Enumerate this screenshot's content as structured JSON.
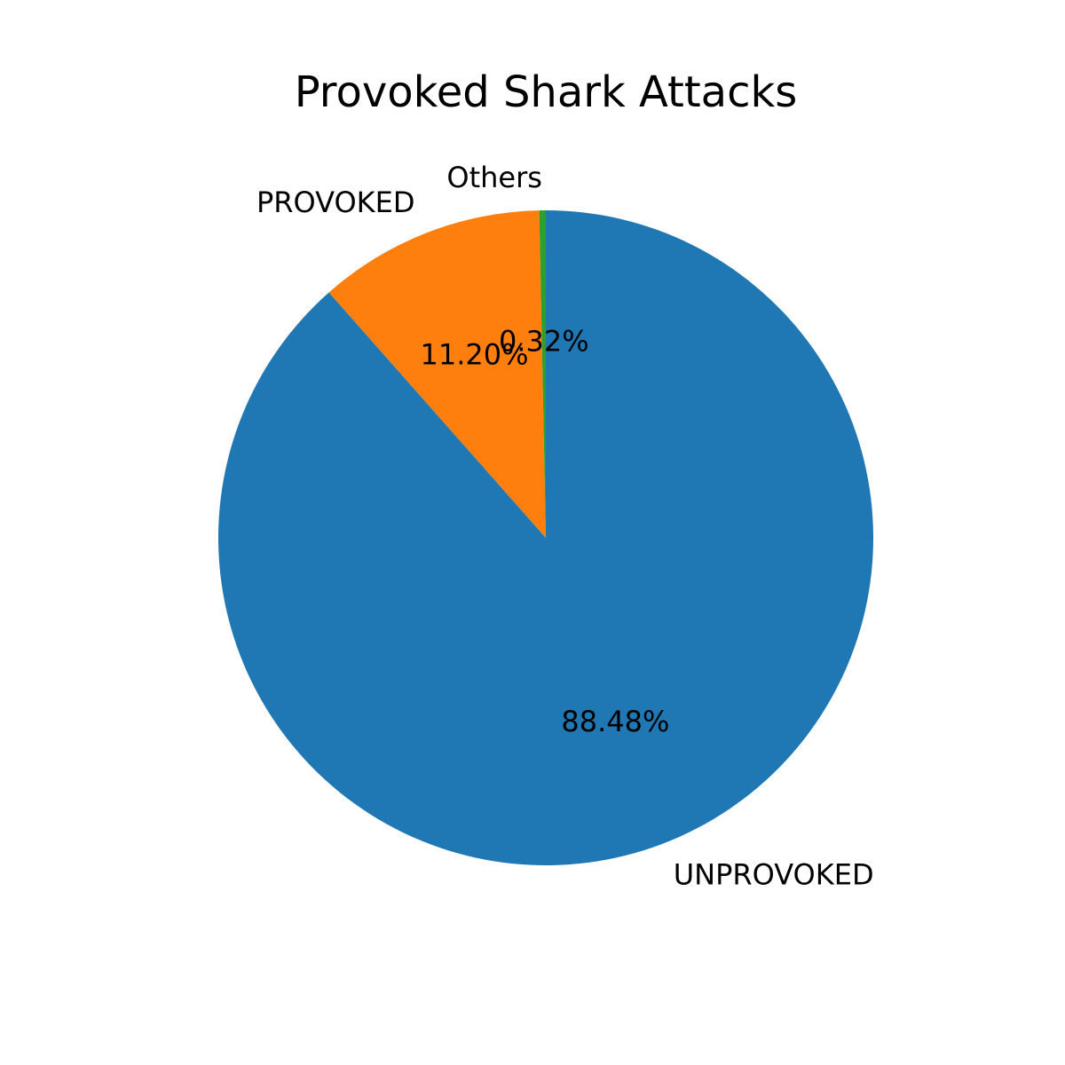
{
  "chart_data": {
    "type": "pie",
    "title": "Provoked Shark Attacks",
    "slices": [
      {
        "name": "UNPROVOKED",
        "value": 88.48,
        "pct_label": "88.48%",
        "color": "#1f77b4"
      },
      {
        "name": "PROVOKED",
        "value": 11.2,
        "pct_label": "11.20%",
        "color": "#ff7f0e"
      },
      {
        "name": "Others",
        "value": 0.32,
        "pct_label": "0.32%",
        "color": "#2ca02c"
      }
    ],
    "start_angle_deg": 90,
    "direction": "clockwise",
    "legend": "none"
  }
}
